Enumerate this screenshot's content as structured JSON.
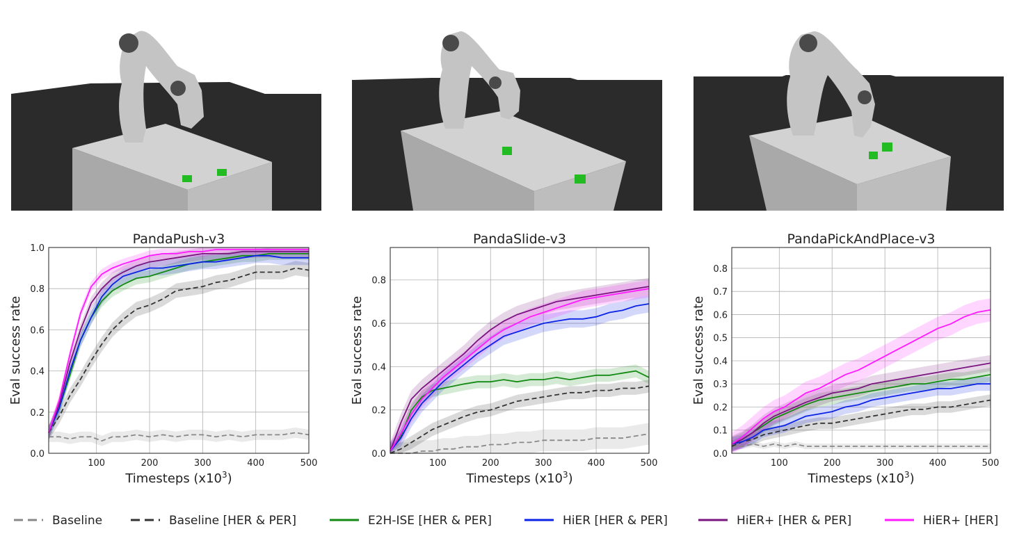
{
  "figure": {
    "legend": [
      {
        "label": "Baseline",
        "color": "#888888",
        "dash": true
      },
      {
        "label": "Baseline [HER & PER]",
        "color": "#333333",
        "dash": true
      },
      {
        "label": "E2H-ISE [HER & PER]",
        "color": "#138a13",
        "dash": false
      },
      {
        "label": "HiER [HER & PER]",
        "color": "#0b23e6",
        "dash": false
      },
      {
        "label": "HiER+ [HER & PER]",
        "color": "#7a1580",
        "dash": false
      },
      {
        "label": "HiER+ [HER]",
        "color": "#ff1aff",
        "dash": false
      }
    ],
    "scene_icons": [
      "panda-push-scene-icon",
      "panda-slide-scene-icon",
      "panda-pick-and-place-scene-icon"
    ]
  },
  "chart_data": [
    {
      "type": "line",
      "title": "PandaPush-v3",
      "xlabel": "Timesteps (x10",
      "xlabel_exp": "3",
      "xlabel_close": ")",
      "ylabel": "Eval success rate",
      "xlim": [
        10,
        500
      ],
      "ylim": [
        0,
        1.0
      ],
      "xticks": [
        "100",
        "200",
        "300",
        "400",
        "500"
      ],
      "xtick_values": [
        100,
        200,
        300,
        400,
        500
      ],
      "yticks": [
        "0.0",
        "0.2",
        "0.4",
        "0.6",
        "0.8",
        "1.0"
      ],
      "ytick_values": [
        0,
        0.2,
        0.4,
        0.6,
        0.8,
        1.0
      ],
      "grid": true,
      "x": [
        10,
        30,
        50,
        70,
        90,
        110,
        130,
        150,
        175,
        200,
        225,
        250,
        275,
        300,
        325,
        350,
        375,
        400,
        425,
        450,
        475,
        500
      ],
      "series": [
        {
          "name": "Baseline",
          "color": "#888888",
          "dash": true,
          "band": 0.025,
          "values": [
            0.08,
            0.08,
            0.07,
            0.08,
            0.08,
            0.06,
            0.08,
            0.08,
            0.09,
            0.08,
            0.09,
            0.08,
            0.09,
            0.09,
            0.08,
            0.09,
            0.08,
            0.09,
            0.09,
            0.09,
            0.1,
            0.09
          ]
        },
        {
          "name": "Baseline [HER & PER]",
          "color": "#333333",
          "dash": true,
          "band": 0.035,
          "values": [
            0.1,
            0.18,
            0.28,
            0.36,
            0.45,
            0.53,
            0.6,
            0.65,
            0.7,
            0.72,
            0.75,
            0.79,
            0.8,
            0.81,
            0.83,
            0.84,
            0.86,
            0.88,
            0.88,
            0.88,
            0.9,
            0.89
          ]
        },
        {
          "name": "E2H-ISE [HER & PER]",
          "color": "#138a13",
          "dash": false,
          "band": 0.03,
          "values": [
            0.1,
            0.22,
            0.38,
            0.55,
            0.66,
            0.74,
            0.79,
            0.82,
            0.85,
            0.86,
            0.88,
            0.9,
            0.92,
            0.93,
            0.94,
            0.95,
            0.96,
            0.96,
            0.97,
            0.97,
            0.97,
            0.97
          ]
        },
        {
          "name": "HiER [HER & PER]",
          "color": "#0b23e6",
          "dash": false,
          "band": 0.035,
          "values": [
            0.1,
            0.22,
            0.4,
            0.55,
            0.66,
            0.76,
            0.82,
            0.86,
            0.88,
            0.9,
            0.9,
            0.91,
            0.92,
            0.93,
            0.93,
            0.94,
            0.95,
            0.96,
            0.96,
            0.95,
            0.95,
            0.95
          ]
        },
        {
          "name": "HiER+ [HER & PER]",
          "color": "#7a1580",
          "dash": false,
          "band": 0.03,
          "values": [
            0.1,
            0.24,
            0.44,
            0.6,
            0.73,
            0.8,
            0.85,
            0.88,
            0.91,
            0.93,
            0.94,
            0.95,
            0.96,
            0.97,
            0.97,
            0.97,
            0.98,
            0.98,
            0.98,
            0.98,
            0.98,
            0.98
          ]
        },
        {
          "name": "HiER+ [HER]",
          "color": "#ff1aff",
          "dash": false,
          "band": 0.025,
          "values": [
            0.1,
            0.26,
            0.48,
            0.68,
            0.81,
            0.87,
            0.9,
            0.92,
            0.94,
            0.96,
            0.97,
            0.97,
            0.98,
            0.98,
            0.99,
            0.99,
            0.99,
            0.99,
            0.99,
            0.99,
            0.99,
            0.99
          ]
        }
      ]
    },
    {
      "type": "line",
      "title": "PandaSlide-v3",
      "xlabel": "Timesteps (x10",
      "xlabel_exp": "3",
      "xlabel_close": ")",
      "ylabel": "Eval success rate",
      "xlim": [
        10,
        500
      ],
      "ylim": [
        0,
        0.95
      ],
      "xticks": [
        "100",
        "200",
        "300",
        "400",
        "500"
      ],
      "xtick_values": [
        100,
        200,
        300,
        400,
        500
      ],
      "yticks": [
        "0.0",
        "0.2",
        "0.4",
        "0.6",
        "0.8"
      ],
      "ytick_values": [
        0,
        0.2,
        0.4,
        0.6,
        0.8
      ],
      "grid": true,
      "x": [
        10,
        30,
        50,
        70,
        90,
        110,
        130,
        150,
        175,
        200,
        225,
        250,
        275,
        300,
        325,
        350,
        375,
        400,
        425,
        450,
        475,
        500
      ],
      "series": [
        {
          "name": "Baseline",
          "color": "#888888",
          "dash": true,
          "band": 0.05,
          "values": [
            0.0,
            0.0,
            0.0,
            0.01,
            0.01,
            0.02,
            0.02,
            0.03,
            0.03,
            0.04,
            0.04,
            0.05,
            0.05,
            0.06,
            0.06,
            0.06,
            0.06,
            0.07,
            0.07,
            0.07,
            0.08,
            0.09
          ]
        },
        {
          "name": "Baseline [HER & PER]",
          "color": "#333333",
          "dash": true,
          "band": 0.03,
          "values": [
            0.0,
            0.02,
            0.05,
            0.08,
            0.11,
            0.13,
            0.15,
            0.17,
            0.19,
            0.2,
            0.22,
            0.24,
            0.25,
            0.26,
            0.27,
            0.28,
            0.28,
            0.29,
            0.29,
            0.3,
            0.3,
            0.31
          ]
        },
        {
          "name": "E2H-ISE [HER & PER]",
          "color": "#138a13",
          "dash": false,
          "band": 0.03,
          "values": [
            0.01,
            0.08,
            0.2,
            0.26,
            0.29,
            0.3,
            0.31,
            0.32,
            0.33,
            0.33,
            0.34,
            0.33,
            0.34,
            0.34,
            0.35,
            0.34,
            0.35,
            0.36,
            0.36,
            0.37,
            0.38,
            0.35
          ]
        },
        {
          "name": "HiER [HER & PER]",
          "color": "#0b23e6",
          "dash": false,
          "band": 0.04,
          "values": [
            0.01,
            0.07,
            0.16,
            0.23,
            0.28,
            0.33,
            0.37,
            0.41,
            0.46,
            0.5,
            0.54,
            0.56,
            0.58,
            0.6,
            0.61,
            0.62,
            0.62,
            0.63,
            0.65,
            0.66,
            0.68,
            0.69
          ]
        },
        {
          "name": "HiER+ [HER & PER]",
          "color": "#7a1580",
          "dash": false,
          "band": 0.04,
          "values": [
            0.01,
            0.14,
            0.25,
            0.3,
            0.34,
            0.38,
            0.42,
            0.46,
            0.52,
            0.57,
            0.61,
            0.64,
            0.66,
            0.68,
            0.7,
            0.71,
            0.72,
            0.73,
            0.74,
            0.75,
            0.76,
            0.77
          ]
        },
        {
          "name": "HiER+ [HER]",
          "color": "#ff1aff",
          "dash": false,
          "band": 0.04,
          "values": [
            0.01,
            0.09,
            0.18,
            0.25,
            0.3,
            0.35,
            0.39,
            0.43,
            0.48,
            0.53,
            0.57,
            0.6,
            0.63,
            0.65,
            0.67,
            0.69,
            0.71,
            0.72,
            0.73,
            0.74,
            0.75,
            0.76
          ]
        }
      ]
    },
    {
      "type": "line",
      "title": "PandaPickAndPlace-v3",
      "xlabel": "Timesteps (x10",
      "xlabel_exp": "3",
      "xlabel_close": ")",
      "ylabel": "Eval success rate",
      "xlim": [
        10,
        500
      ],
      "ylim": [
        0,
        0.89
      ],
      "xticks": [
        "100",
        "200",
        "300",
        "400",
        "500"
      ],
      "xtick_values": [
        100,
        200,
        300,
        400,
        500
      ],
      "yticks": [
        "0.0",
        "0.1",
        "0.2",
        "0.3",
        "0.4",
        "0.5",
        "0.6",
        "0.7",
        "0.8"
      ],
      "ytick_values": [
        0,
        0.1,
        0.2,
        0.3,
        0.4,
        0.5,
        0.6,
        0.7,
        0.8
      ],
      "grid": true,
      "x": [
        10,
        30,
        50,
        70,
        90,
        110,
        130,
        150,
        175,
        200,
        225,
        250,
        275,
        300,
        325,
        350,
        375,
        400,
        425,
        450,
        475,
        500
      ],
      "series": [
        {
          "name": "Baseline",
          "color": "#888888",
          "dash": true,
          "band": 0.012,
          "values": [
            0.03,
            0.03,
            0.04,
            0.03,
            0.04,
            0.03,
            0.04,
            0.03,
            0.03,
            0.03,
            0.03,
            0.03,
            0.03,
            0.03,
            0.03,
            0.03,
            0.03,
            0.03,
            0.03,
            0.03,
            0.03,
            0.03
          ]
        },
        {
          "name": "Baseline [HER & PER]",
          "color": "#333333",
          "dash": true,
          "band": 0.025,
          "values": [
            0.03,
            0.05,
            0.06,
            0.08,
            0.09,
            0.1,
            0.11,
            0.12,
            0.13,
            0.13,
            0.14,
            0.15,
            0.16,
            0.17,
            0.18,
            0.19,
            0.19,
            0.2,
            0.2,
            0.21,
            0.22,
            0.23
          ]
        },
        {
          "name": "E2H-ISE [HER & PER]",
          "color": "#138a13",
          "dash": false,
          "band": 0.03,
          "values": [
            0.04,
            0.06,
            0.09,
            0.12,
            0.15,
            0.17,
            0.19,
            0.21,
            0.23,
            0.24,
            0.25,
            0.26,
            0.27,
            0.28,
            0.29,
            0.3,
            0.3,
            0.31,
            0.32,
            0.32,
            0.33,
            0.34
          ]
        },
        {
          "name": "HiER [HER & PER]",
          "color": "#0b23e6",
          "dash": false,
          "band": 0.03,
          "values": [
            0.04,
            0.05,
            0.07,
            0.1,
            0.11,
            0.12,
            0.14,
            0.16,
            0.17,
            0.18,
            0.2,
            0.21,
            0.23,
            0.24,
            0.25,
            0.26,
            0.27,
            0.28,
            0.28,
            0.29,
            0.3,
            0.3
          ]
        },
        {
          "name": "HiER+ [HER & PER]",
          "color": "#7a1580",
          "dash": false,
          "band": 0.035,
          "values": [
            0.04,
            0.06,
            0.09,
            0.13,
            0.16,
            0.18,
            0.2,
            0.22,
            0.24,
            0.26,
            0.27,
            0.28,
            0.3,
            0.31,
            0.32,
            0.33,
            0.34,
            0.35,
            0.36,
            0.37,
            0.38,
            0.39
          ]
        },
        {
          "name": "HiER+ [HER]",
          "color": "#ff1aff",
          "dash": false,
          "band": 0.05,
          "values": [
            0.04,
            0.07,
            0.11,
            0.15,
            0.18,
            0.2,
            0.23,
            0.26,
            0.28,
            0.31,
            0.34,
            0.36,
            0.39,
            0.42,
            0.45,
            0.48,
            0.51,
            0.54,
            0.56,
            0.59,
            0.61,
            0.62
          ]
        }
      ]
    }
  ]
}
